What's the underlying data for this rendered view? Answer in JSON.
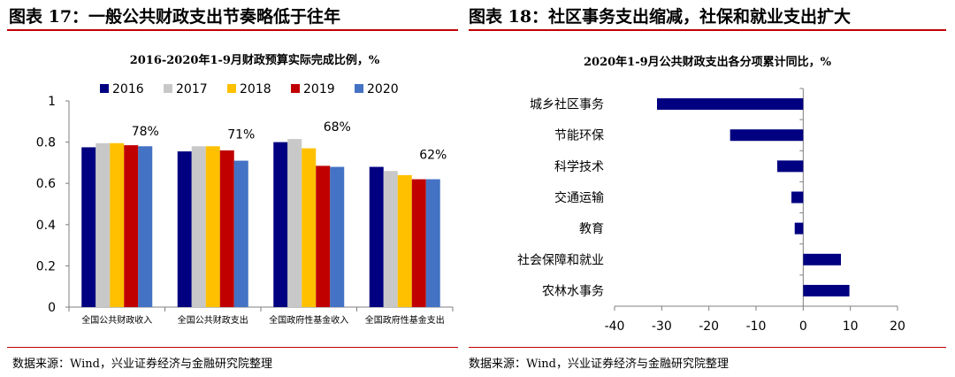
{
  "left": {
    "figure_title": "图表 17：一般公共财政支出节奏略低于往年",
    "source": "数据来源：Wind，兴业证券经济与金融研究院整理",
    "chart_data": {
      "type": "bar",
      "title": "2016-2020年1-9月财政预算实际完成比例，%",
      "categories": [
        "全国公共财政收入",
        "全国公共财政支出",
        "全国政府性基金收入",
        "全国政府性基金支出"
      ],
      "series": [
        {
          "name": "2016",
          "color": "#000080",
          "values": [
            0.775,
            0.755,
            0.8,
            0.68
          ]
        },
        {
          "name": "2017",
          "color": "#c8c8c8",
          "values": [
            0.795,
            0.78,
            0.815,
            0.66
          ]
        },
        {
          "name": "2018",
          "color": "#ffc000",
          "values": [
            0.795,
            0.78,
            0.77,
            0.64
          ]
        },
        {
          "name": "2019",
          "color": "#c00000",
          "values": [
            0.785,
            0.76,
            0.685,
            0.62
          ]
        },
        {
          "name": "2020",
          "color": "#4472c4",
          "values": [
            0.78,
            0.71,
            0.68,
            0.62
          ]
        }
      ],
      "annotations": [
        "78%",
        "71%",
        "68%",
        "62%"
      ],
      "ylim": [
        0,
        1
      ],
      "yticks": [
        "0",
        "0.2",
        "0.4",
        "0.6",
        "0.8",
        "1"
      ],
      "legend": "top",
      "grid": false
    }
  },
  "right": {
    "figure_title": "图表 18：社区事务支出缩减，社保和就业支出扩大",
    "source": "数据来源：Wind，兴业证券经济与金融研究院整理",
    "chart_data": {
      "type": "bar",
      "orientation": "horizontal",
      "title": "2020年1-9月公共财政支出各分项累计同比，%",
      "categories": [
        "城乡社区事务",
        "节能环保",
        "科学技术",
        "交通运输",
        "教育",
        "社会保障和就业",
        "农林水事务"
      ],
      "values": [
        -31,
        -15.5,
        -5.5,
        -2.5,
        -1.8,
        8,
        9.8
      ],
      "color": "#000080",
      "xlim": [
        -40,
        20
      ],
      "xticks": [
        "-40",
        "-30",
        "-20",
        "-10",
        "0",
        "10",
        "20"
      ],
      "grid": false
    }
  }
}
